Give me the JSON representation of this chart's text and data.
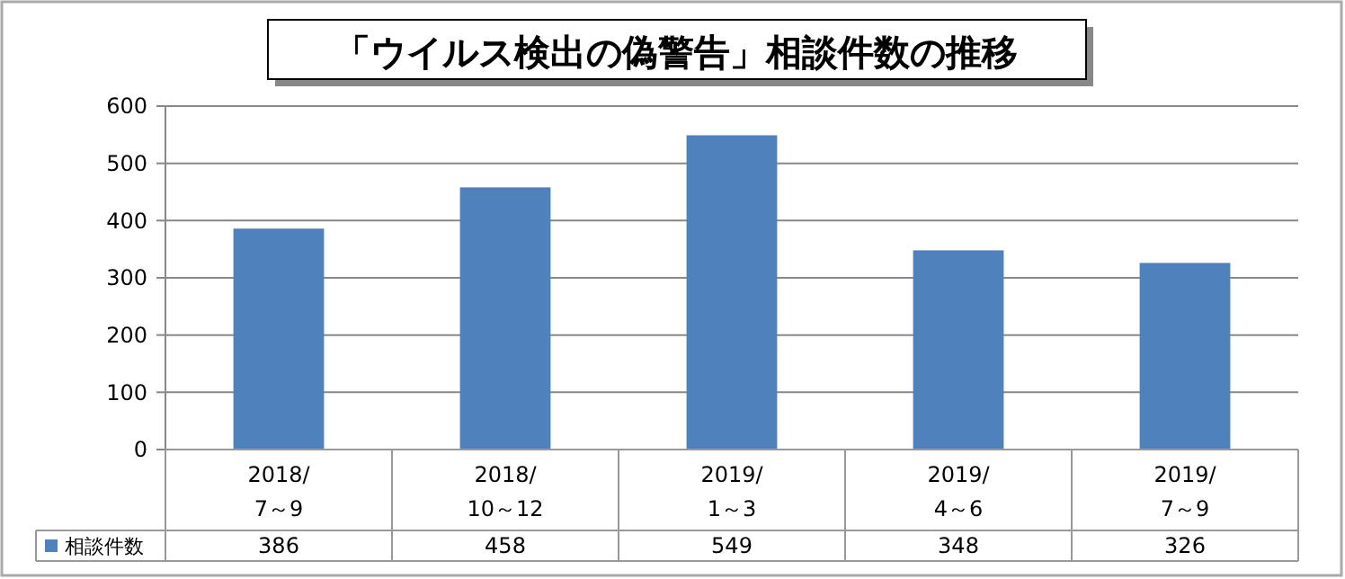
{
  "chart_data": {
    "type": "bar",
    "title": "「ウイルス検出の偽警告」相談件数の推移",
    "categories": [
      "2018/\n7～9",
      "2018/\n10～12",
      "2019/\n1～3",
      "2019/\n4～6",
      "2019/\n7～9"
    ],
    "series": [
      {
        "name": "相談件数",
        "color": "#4f81bd",
        "values": [
          386,
          458,
          549,
          348,
          326
        ]
      }
    ],
    "ylim": [
      0,
      600
    ],
    "yticks": [
      0,
      100,
      200,
      300,
      400,
      500,
      600
    ],
    "grid": "y",
    "legend": "bottom left",
    "data_labels": true
  }
}
